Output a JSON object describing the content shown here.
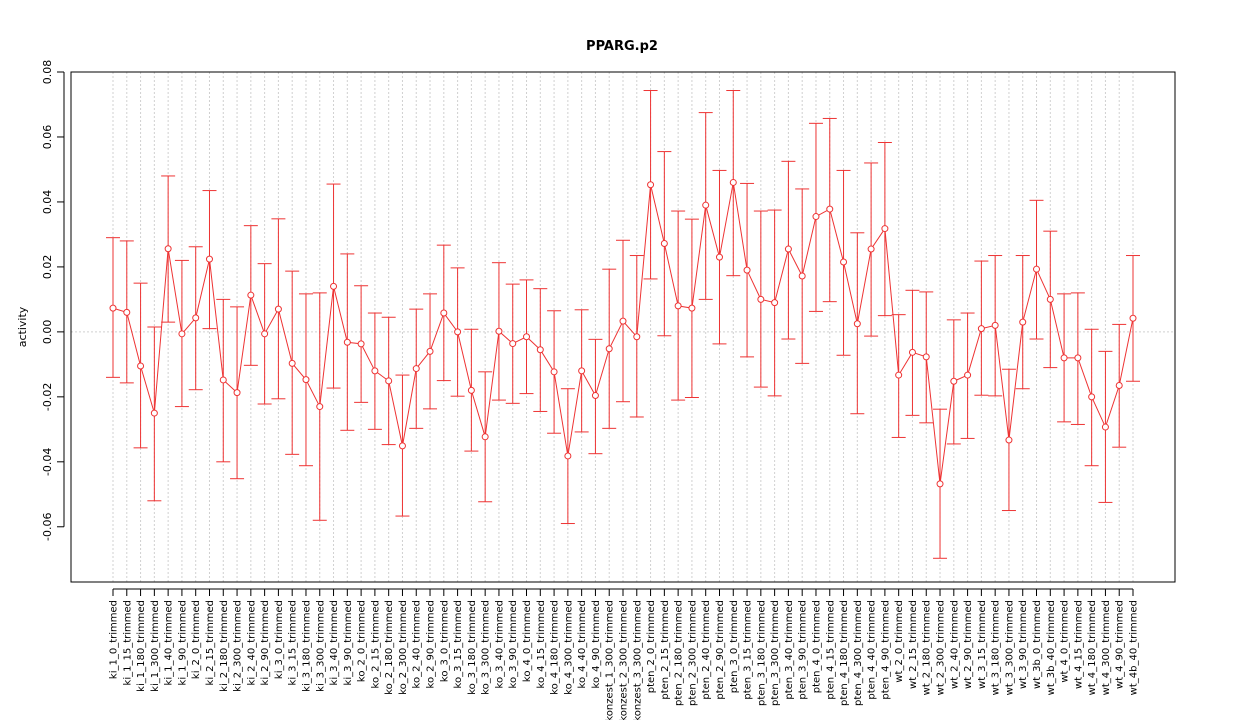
{
  "chart_data": {
    "type": "line",
    "title": "PPARG.p2",
    "xlabel": "",
    "ylabel": "activity",
    "ylim": [
      -0.077,
      0.08
    ],
    "yticks": [
      -0.06,
      -0.04,
      -0.02,
      0.0,
      0.02,
      0.04,
      0.06,
      0.08
    ],
    "ytick_labels": [
      "-0.06",
      "-0.04",
      "-0.02",
      "0.00",
      "0.02",
      "0.04",
      "0.06",
      "0.08"
    ],
    "grid": true,
    "reference_line": 0,
    "colors": {
      "series": "#ee3333",
      "grid": "#d0d0d0",
      "axis": "#000000"
    },
    "categories": [
      "ki_1_0_trimmed",
      "ki_1_15_trimmed",
      "ki_1_180_trimmed",
      "ki_1_300_trimmed",
      "ki_1_40_trimmed",
      "ki_1_90_trimmed",
      "ki_2_0_trimmed",
      "ki_2_15_trimmed",
      "ki_2_180_trimmed",
      "ki_2_300_trimmed",
      "ki_2_40_trimmed",
      "ki_2_90_trimmed",
      "ki_3_0_trimmed",
      "ki_3_15_trimmed",
      "ki_3_180_trimmed",
      "ki_3_300_trimmed",
      "ki_3_40_trimmed",
      "ki_3_90_trimmed",
      "ko_2_0_trimmed",
      "ko_2_15_trimmed",
      "ko_2_180_trimmed",
      "ko_2_300_trimmed",
      "ko_2_40_trimmed",
      "ko_2_90_trimmed",
      "ko_3_0_trimmed",
      "ko_3_15_trimmed",
      "ko_3_180_trimmed",
      "ko_3_300_trimmed",
      "ko_3_40_trimmed",
      "ko_3_90_trimmed",
      "ko_4_0_trimmed",
      "ko_4_15_trimmed",
      "ko_4_180_trimmed",
      "ko_4_300_trimmed",
      "ko_4_40_trimmed",
      "ko_4_90_trimmed",
      "konzest_1_300_trimmed",
      "konzest_2_300_trimmed",
      "konzest_3_300_trimmed",
      "pten_2_0_trimmed",
      "pten_2_15_trimmed",
      "pten_2_180_trimmed",
      "pten_2_300_trimmed",
      "pten_2_40_trimmed",
      "pten_2_90_trimmed",
      "pten_3_0_trimmed",
      "pten_3_15_trimmed",
      "pten_3_180_trimmed",
      "pten_3_300_trimmed",
      "pten_3_40_trimmed",
      "pten_3_90_trimmed",
      "pten_4_0_trimmed",
      "pten_4_15_trimmed",
      "pten_4_180_trimmed",
      "pten_4_300_trimmed",
      "pten_4_40_trimmed",
      "pten_4_90_trimmed",
      "wt_2_0_trimmed",
      "wt_2_15_trimmed",
      "wt_2_180_trimmed",
      "wt_2_300_trimmed",
      "wt_2_40_trimmed",
      "wt_2_90_trimmed",
      "wt_3_15_trimmed",
      "wt_3_180_trimmed",
      "wt_3_300_trimmed",
      "wt_3_90_trimmed",
      "wt_3b_0_trimmed",
      "wt_3b_40_trimmed",
      "wt_4_0_trimmed",
      "wt_4_15_trimmed",
      "wt_4_180_trimmed",
      "wt_4_300_trimmed",
      "wt_4_90_trimmed",
      "wt_4b_40_trimmed"
    ],
    "values": [
      0.0073,
      0.006,
      -0.0105,
      -0.025,
      0.0256,
      -0.0006,
      0.0043,
      0.0224,
      -0.0148,
      -0.0187,
      0.0113,
      -0.0006,
      0.007,
      -0.0097,
      -0.0147,
      -0.023,
      0.014,
      -0.0032,
      -0.0037,
      -0.012,
      -0.0151,
      -0.0351,
      -0.0113,
      -0.006,
      0.0058,
      0.0,
      -0.018,
      -0.0323,
      0.0002,
      -0.0036,
      -0.0015,
      -0.0055,
      -0.0123,
      -0.0382,
      -0.012,
      -0.0196,
      -0.0052,
      0.0033,
      -0.0015,
      0.0453,
      0.0272,
      0.008,
      0.0073,
      0.039,
      0.023,
      0.046,
      0.019,
      0.01,
      0.009,
      0.0255,
      0.0172,
      0.0355,
      0.0378,
      0.0215,
      0.0025,
      0.0255,
      0.0318,
      -0.0133,
      -0.0063,
      -0.0077,
      -0.0468,
      -0.0152,
      -0.0133,
      0.001,
      0.002,
      -0.0333,
      0.003,
      0.0193,
      0.01,
      -0.008,
      -0.008,
      -0.02,
      -0.0293,
      -0.0165,
      0.0042
    ],
    "lower": [
      -0.014,
      -0.0157,
      -0.0357,
      -0.052,
      0.003,
      -0.023,
      -0.0178,
      0.001,
      -0.04,
      -0.0452,
      -0.0103,
      -0.0222,
      -0.0206,
      -0.0377,
      -0.0412,
      -0.058,
      -0.0173,
      -0.0303,
      -0.0217,
      -0.03,
      -0.0347,
      -0.0567,
      -0.0297,
      -0.0237,
      -0.015,
      -0.0198,
      -0.0367,
      -0.0523,
      -0.021,
      -0.022,
      -0.019,
      -0.0245,
      -0.0312,
      -0.059,
      -0.0308,
      -0.0375,
      -0.0297,
      -0.0215,
      -0.0262,
      0.0163,
      -0.0012,
      -0.021,
      -0.0202,
      0.01,
      -0.0037,
      0.0173,
      -0.0077,
      -0.017,
      -0.0197,
      -0.0022,
      -0.0097,
      0.0063,
      0.0093,
      -0.0072,
      -0.0252,
      -0.0013,
      0.005,
      -0.0325,
      -0.0257,
      -0.028,
      -0.0697,
      -0.0345,
      -0.0328,
      -0.0195,
      -0.0197,
      -0.055,
      -0.0175,
      -0.0022,
      -0.011,
      -0.0277,
      -0.0285,
      -0.0412,
      -0.0525,
      -0.0355,
      -0.0152
    ],
    "upper": [
      0.029,
      0.028,
      0.015,
      0.0015,
      0.048,
      0.022,
      0.0262,
      0.0435,
      0.01,
      0.0077,
      0.0327,
      0.021,
      0.0348,
      0.0187,
      0.0117,
      0.012,
      0.0455,
      0.024,
      0.0142,
      0.0058,
      0.0045,
      -0.0133,
      0.007,
      0.0117,
      0.0267,
      0.0197,
      0.0008,
      -0.0123,
      0.0213,
      0.0147,
      0.016,
      0.0133,
      0.0065,
      -0.0175,
      0.0068,
      -0.0023,
      0.0193,
      0.0282,
      0.0235,
      0.0743,
      0.0555,
      0.0372,
      0.0347,
      0.0675,
      0.0497,
      0.0743,
      0.0457,
      0.0372,
      0.0375,
      0.0525,
      0.044,
      0.0642,
      0.0657,
      0.0497,
      0.0305,
      0.052,
      0.0583,
      0.0053,
      0.0128,
      0.0123,
      -0.0238,
      0.0037,
      0.0058,
      0.0218,
      0.0235,
      -0.0115,
      0.0235,
      0.0405,
      0.031,
      0.0117,
      0.012,
      0.0008,
      -0.006,
      0.0023,
      0.0235
    ]
  }
}
